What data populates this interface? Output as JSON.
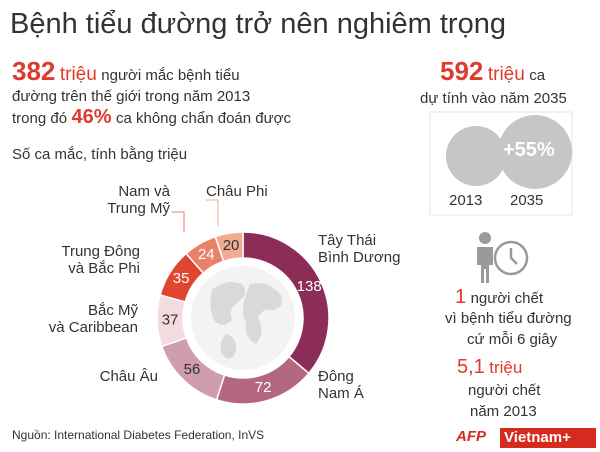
{
  "title": "Bệnh tiểu đường trở nên nghiêm trọng",
  "intro": {
    "count": "382",
    "unit": "triệu",
    "line1": "người mắc bệnh tiểu",
    "line2": "đường trên thế giới trong năm 2013",
    "line3_pre": "trong đó",
    "percent": "46%",
    "line3_post": "ca không chẩn đoán được"
  },
  "projection": {
    "count": "592",
    "unit": "triệu",
    "suffix": "ca",
    "line2": "dự tính vào năm 2035",
    "growth": "+55%",
    "year_a": "2013",
    "year_b": "2035"
  },
  "deaths": {
    "count": "1",
    "line1": "người chết",
    "line2": "vì bệnh tiểu đường",
    "line3": "cứ mỗi 6 giây",
    "total": "5,1",
    "total_unit": "triệu",
    "total_line1": "người chết",
    "total_line2": "năm 2013"
  },
  "chart_data": {
    "type": "donut",
    "subtitle": "Số ca mắc, tính bằng triệu",
    "categories": [
      "Tây Thái\nBình Dương",
      "Đông\nNam Á",
      "Châu Âu",
      "Bắc Mỹ\nvà Caribbean",
      "Trung Đông\nvà Bắc Phi",
      "Nam và\nTrung Mỹ",
      "Châu Phi"
    ],
    "values": [
      138,
      72,
      56,
      37,
      35,
      24,
      20
    ],
    "colors": [
      "#8c2d58",
      "#b4687f",
      "#cf9dab",
      "#f2dcdf",
      "#e0452f",
      "#e8836a",
      "#f2ab93"
    ]
  },
  "source": "Nguồn: International Diabetes Federation, InVS",
  "logo": {
    "afp": "AFP",
    "brand": "Vietnam+"
  }
}
